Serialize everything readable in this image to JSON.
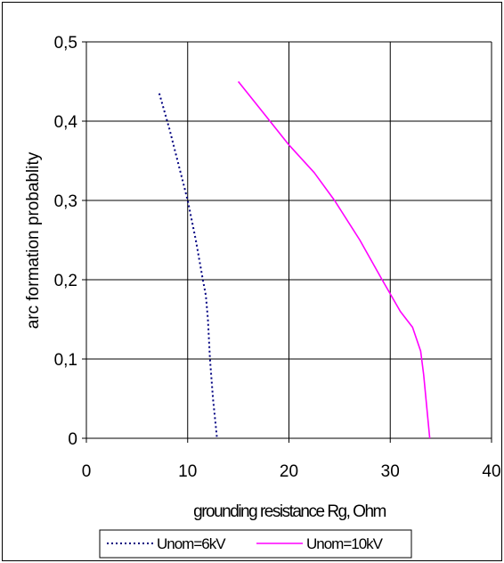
{
  "chart_data": {
    "type": "line",
    "title": "",
    "xlabel": "grounding resistance Rg, Ohm",
    "ylabel": "arc formation probablity",
    "xlim": [
      0,
      40
    ],
    "ylim": [
      0,
      0.5
    ],
    "x_ticks": [
      "0",
      "10",
      "20",
      "30",
      "40"
    ],
    "y_ticks": [
      "0",
      "0,1",
      "0,2",
      "0,3",
      "0,4",
      "0,5"
    ],
    "grid": true,
    "legend_position": "bottom",
    "series": [
      {
        "name": "Unom=6kV",
        "color": "#000080",
        "style": "dotted",
        "points": [
          [
            7.2,
            0.435
          ],
          [
            8.2,
            0.39
          ],
          [
            9.0,
            0.35
          ],
          [
            10.0,
            0.3
          ],
          [
            10.8,
            0.25
          ],
          [
            11.5,
            0.2
          ],
          [
            11.8,
            0.18
          ],
          [
            12.0,
            0.15
          ],
          [
            12.2,
            0.1
          ],
          [
            12.5,
            0.05
          ],
          [
            12.9,
            0.0
          ]
        ]
      },
      {
        "name": "Unom=10kV",
        "color": "#FF00FF",
        "style": "solid",
        "points": [
          [
            15.0,
            0.45
          ],
          [
            17.5,
            0.41
          ],
          [
            20.0,
            0.37
          ],
          [
            22.5,
            0.335
          ],
          [
            24.5,
            0.3
          ],
          [
            27.0,
            0.25
          ],
          [
            29.2,
            0.2
          ],
          [
            31.0,
            0.16
          ],
          [
            32.2,
            0.14
          ],
          [
            33.0,
            0.11
          ],
          [
            33.3,
            0.08
          ],
          [
            33.6,
            0.04
          ],
          [
            33.9,
            0.0
          ]
        ]
      }
    ]
  }
}
